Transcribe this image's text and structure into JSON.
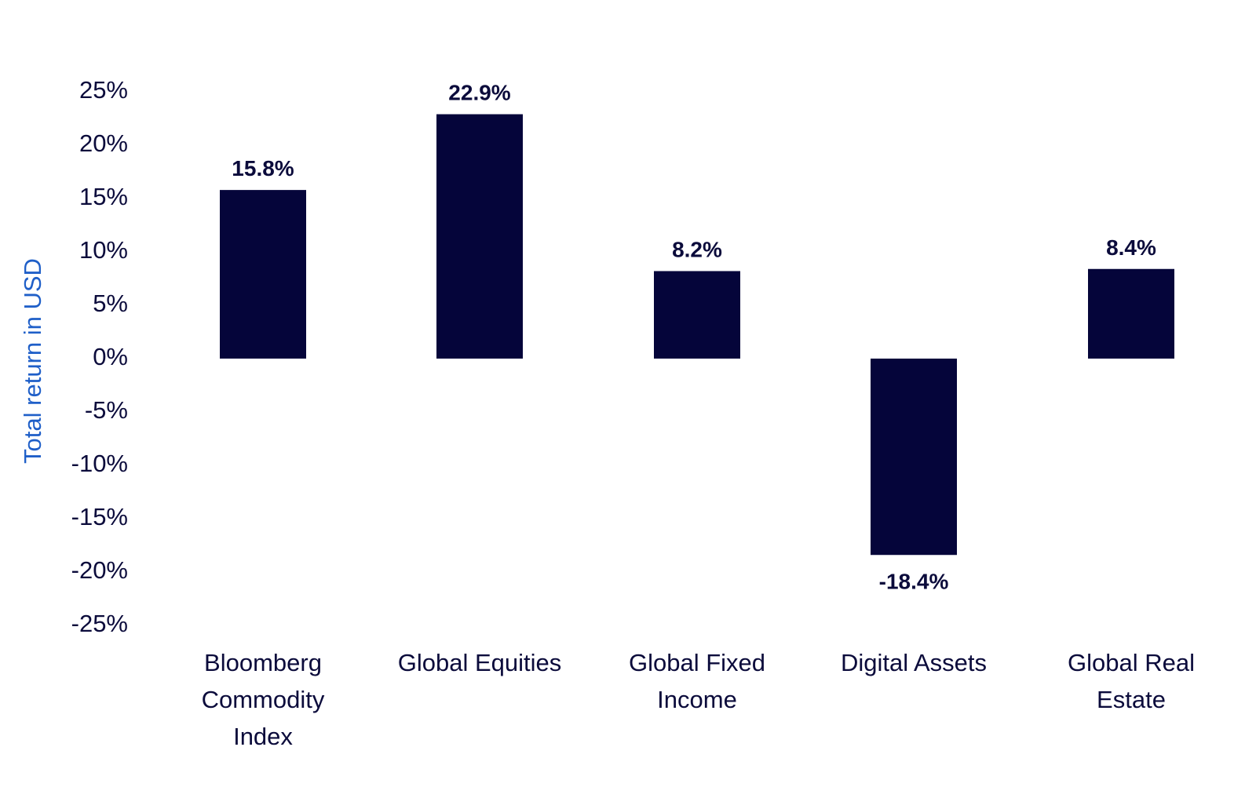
{
  "chart_data": {
    "type": "bar",
    "ylabel": "Total return in USD",
    "categories": [
      [
        "Bloomberg",
        "Commodity",
        "Index"
      ],
      [
        "Global Equities"
      ],
      [
        "Global Fixed",
        "Income"
      ],
      [
        "Digital Assets"
      ],
      [
        "Global Real",
        "Estate"
      ]
    ],
    "values": [
      15.8,
      22.9,
      8.2,
      -18.4,
      8.4
    ],
    "data_labels": [
      "15.8%",
      "22.9%",
      "8.2%",
      "-18.4%",
      "8.4%"
    ],
    "yticks": [
      25,
      20,
      15,
      10,
      5,
      0,
      -5,
      -10,
      -15,
      -20,
      -25
    ],
    "ytick_labels": [
      "25%",
      "20%",
      "15%",
      "10%",
      "5%",
      "0%",
      "-5%",
      "-10%",
      "-15%",
      "-20%",
      "-25%"
    ],
    "ylim": [
      -25,
      25
    ],
    "grid": false,
    "legend": "none",
    "colors": {
      "bar": "#05053a",
      "text": "#0b0b3b",
      "axis_title": "#1f5fc8"
    }
  }
}
